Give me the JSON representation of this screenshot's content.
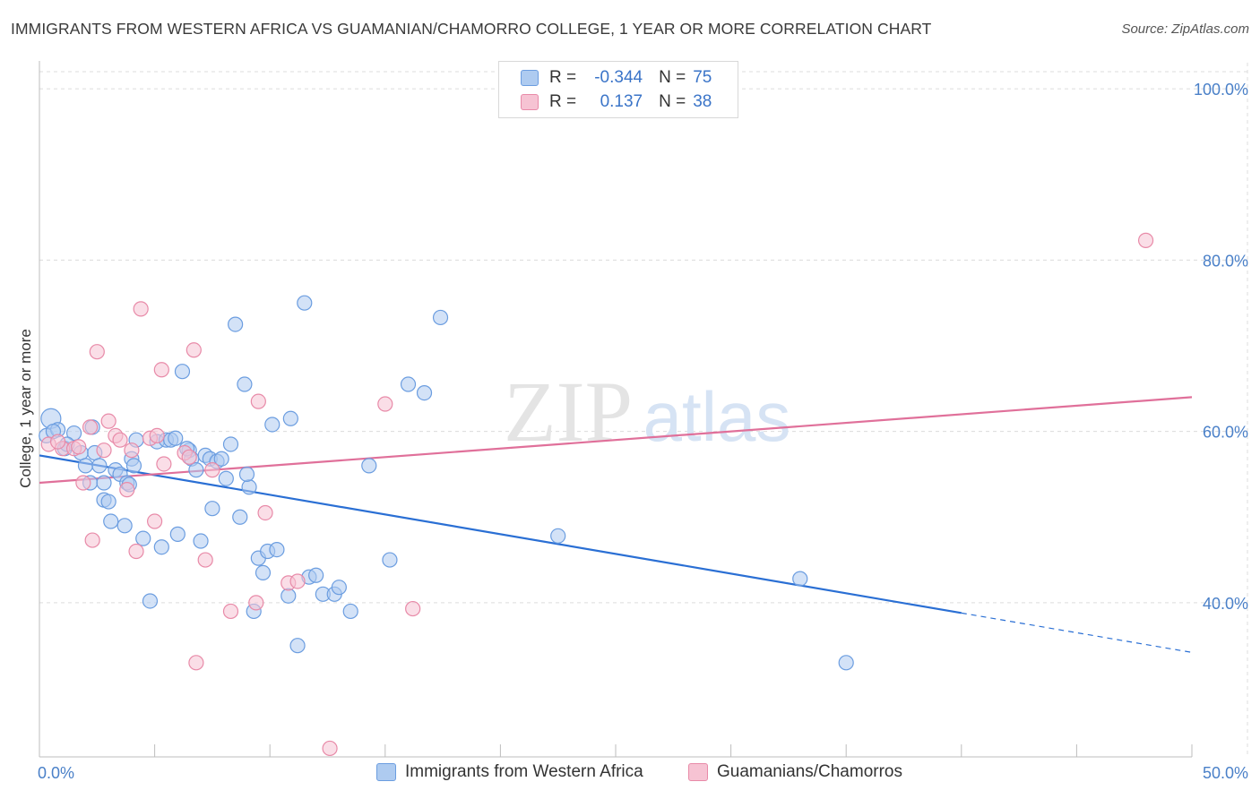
{
  "header": {
    "title": "IMMIGRANTS FROM WESTERN AFRICA VS GUAMANIAN/CHAMORRO COLLEGE, 1 YEAR OR MORE CORRELATION CHART",
    "source": "Source: ZipAtlas.com"
  },
  "watermark": {
    "part1": "ZIP",
    "part2": "atlas"
  },
  "legend": {
    "rows": [
      {
        "r_label": "R =",
        "r_value": "-0.344",
        "n_label": "N =",
        "n_value": "75"
      },
      {
        "r_label": "R =",
        "r_value": "0.137",
        "n_label": "N =",
        "n_value": "38"
      }
    ]
  },
  "colors": {
    "series1": "#6b9de0",
    "series1_fill": "#aecbf0",
    "series1_line": "#2a6fd4",
    "series2": "#e88aa8",
    "series2_fill": "#f6c3d3",
    "series2_line": "#e0709a",
    "axis_text": "#4a80c8",
    "grid": "#dcdcdc"
  },
  "chart_data": {
    "type": "scatter",
    "title": "IMMIGRANTS FROM WESTERN AFRICA VS GUAMANIAN/CHAMORRO COLLEGE, 1 YEAR OR MORE CORRELATION CHART",
    "ylabel": "College, 1 year or more",
    "xlabel": "",
    "xlim": [
      0,
      50
    ],
    "ylim": [
      22,
      102
    ],
    "x_tick_labels": [
      "0.0%",
      "50.0%"
    ],
    "y_ticks": [
      40,
      60,
      80,
      100
    ],
    "y_tick_labels": [
      "40.0%",
      "60.0%",
      "80.0%",
      "100.0%"
    ],
    "series": [
      {
        "name": "Immigrants from Western Africa",
        "r": -0.344,
        "n": 75,
        "trend": {
          "x0": 0,
          "y0": 57.2,
          "x1": 40,
          "y1": 38.8,
          "dash_to_x": 50,
          "dash_to_y": 34.2
        },
        "points": [
          [
            0.3,
            59.5
          ],
          [
            0.5,
            61.5
          ],
          [
            0.8,
            60.2
          ],
          [
            1.1,
            58.0
          ],
          [
            1.5,
            59.8
          ],
          [
            1.8,
            57.5
          ],
          [
            2.0,
            56.0
          ],
          [
            2.2,
            54.0
          ],
          [
            2.3,
            60.5
          ],
          [
            2.4,
            57.5
          ],
          [
            2.6,
            56.0
          ],
          [
            2.8,
            54.0
          ],
          [
            2.8,
            52.0
          ],
          [
            3.0,
            51.8
          ],
          [
            3.1,
            49.5
          ],
          [
            3.3,
            55.5
          ],
          [
            3.5,
            55.0
          ],
          [
            3.7,
            49.0
          ],
          [
            3.8,
            54.0
          ],
          [
            4.0,
            56.8
          ],
          [
            4.1,
            56.0
          ],
          [
            4.2,
            59.0
          ],
          [
            4.5,
            47.5
          ],
          [
            4.8,
            40.2
          ],
          [
            5.1,
            58.8
          ],
          [
            5.3,
            46.5
          ],
          [
            5.5,
            59.0
          ],
          [
            5.7,
            59.0
          ],
          [
            5.9,
            59.2
          ],
          [
            6.0,
            48.0
          ],
          [
            6.2,
            67.0
          ],
          [
            6.5,
            57.8
          ],
          [
            6.6,
            56.8
          ],
          [
            6.8,
            55.5
          ],
          [
            7.0,
            47.2
          ],
          [
            7.2,
            57.2
          ],
          [
            7.4,
            56.8
          ],
          [
            7.5,
            51.0
          ],
          [
            7.7,
            56.5
          ],
          [
            7.9,
            56.8
          ],
          [
            8.1,
            54.5
          ],
          [
            8.3,
            58.5
          ],
          [
            8.5,
            72.5
          ],
          [
            8.7,
            50.0
          ],
          [
            8.9,
            65.5
          ],
          [
            9.1,
            53.5
          ],
          [
            9.3,
            39.0
          ],
          [
            9.5,
            45.2
          ],
          [
            9.7,
            43.5
          ],
          [
            9.9,
            46.0
          ],
          [
            10.1,
            60.8
          ],
          [
            10.3,
            46.2
          ],
          [
            10.8,
            40.8
          ],
          [
            10.9,
            61.5
          ],
          [
            11.2,
            35.0
          ],
          [
            11.5,
            75.0
          ],
          [
            11.7,
            43.0
          ],
          [
            12.0,
            43.2
          ],
          [
            12.3,
            41.0
          ],
          [
            12.8,
            41.0
          ],
          [
            13.0,
            41.8
          ],
          [
            13.5,
            39.0
          ],
          [
            14.3,
            56.0
          ],
          [
            15.2,
            45.0
          ],
          [
            16.0,
            65.5
          ],
          [
            16.7,
            64.5
          ],
          [
            17.4,
            73.3
          ],
          [
            22.5,
            47.8
          ],
          [
            33.0,
            42.8
          ],
          [
            35.0,
            33.0
          ],
          [
            1.2,
            58.5
          ],
          [
            3.9,
            53.8
          ],
          [
            6.4,
            58.0
          ],
          [
            9.0,
            55.0
          ],
          [
            0.6,
            60.0
          ]
        ]
      },
      {
        "name": "Guamanians/Chamorros",
        "r": 0.137,
        "n": 38,
        "trend": {
          "x0": 0,
          "y0": 54.0,
          "x1": 50,
          "y1": 64.0
        },
        "points": [
          [
            0.4,
            58.5
          ],
          [
            1.0,
            58.0
          ],
          [
            1.5,
            58.0
          ],
          [
            1.9,
            54.0
          ],
          [
            2.2,
            60.5
          ],
          [
            2.3,
            47.3
          ],
          [
            2.5,
            69.3
          ],
          [
            2.8,
            57.8
          ],
          [
            3.0,
            61.2
          ],
          [
            3.3,
            59.5
          ],
          [
            3.5,
            59.0
          ],
          [
            3.8,
            53.2
          ],
          [
            4.0,
            57.8
          ],
          [
            4.2,
            46.0
          ],
          [
            4.4,
            74.3
          ],
          [
            4.8,
            59.2
          ],
          [
            5.0,
            49.5
          ],
          [
            5.3,
            67.2
          ],
          [
            5.4,
            56.2
          ],
          [
            6.3,
            57.5
          ],
          [
            6.5,
            57.0
          ],
          [
            6.7,
            69.5
          ],
          [
            6.8,
            33.0
          ],
          [
            7.2,
            45.0
          ],
          [
            7.5,
            55.5
          ],
          [
            8.3,
            39.0
          ],
          [
            9.4,
            40.0
          ],
          [
            9.5,
            63.5
          ],
          [
            9.8,
            50.5
          ],
          [
            10.8,
            42.3
          ],
          [
            11.2,
            42.5
          ],
          [
            12.6,
            23.0
          ],
          [
            15.0,
            63.2
          ],
          [
            16.2,
            39.3
          ],
          [
            48.0,
            82.3
          ],
          [
            0.8,
            58.8
          ],
          [
            1.7,
            58.2
          ],
          [
            5.1,
            59.5
          ]
        ]
      }
    ]
  },
  "bottom_legend": {
    "items": [
      {
        "label": "Immigrants from Western Africa"
      },
      {
        "label": "Guamanians/Chamorros"
      }
    ]
  }
}
